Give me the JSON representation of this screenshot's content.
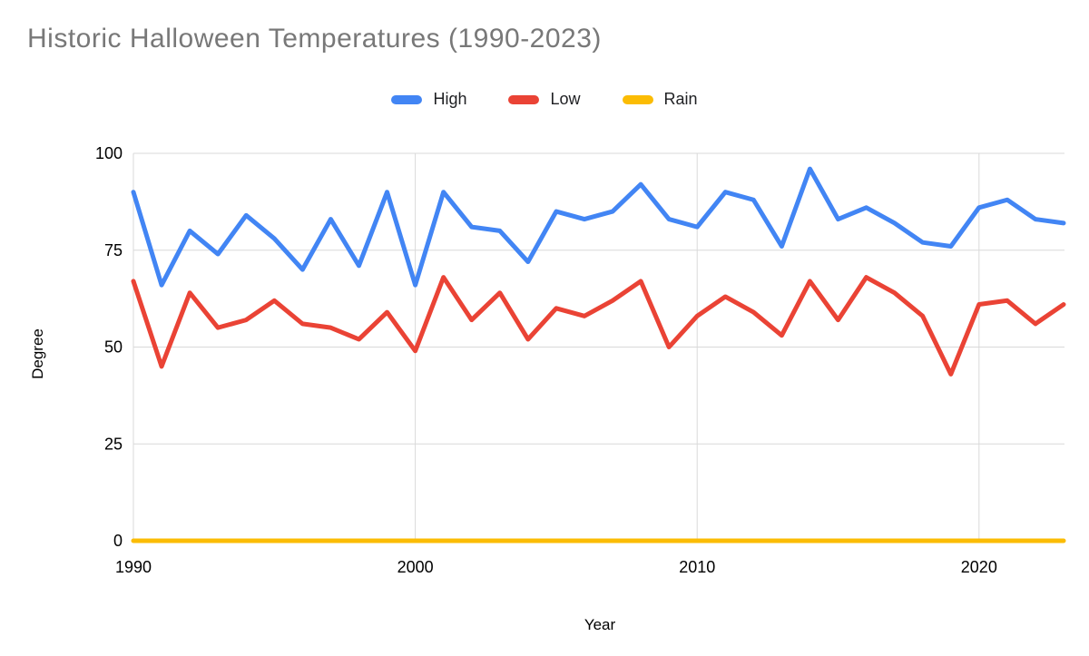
{
  "title": "Historic Halloween Temperatures (1990-2023)",
  "legend": {
    "items": [
      {
        "label": "High",
        "color": "#4285F4"
      },
      {
        "label": "Low",
        "color": "#EA4335"
      },
      {
        "label": "Rain",
        "color": "#FBBC04"
      }
    ]
  },
  "chart_data": {
    "type": "line",
    "title": "Historic Halloween Temperatures (1990-2023)",
    "xlabel": "Year",
    "ylabel": "Degree",
    "x": [
      1990,
      1991,
      1992,
      1993,
      1994,
      1995,
      1996,
      1997,
      1998,
      1999,
      2000,
      2001,
      2002,
      2003,
      2004,
      2005,
      2006,
      2007,
      2008,
      2009,
      2010,
      2011,
      2012,
      2013,
      2014,
      2015,
      2016,
      2017,
      2018,
      2019,
      2020,
      2021,
      2022,
      2023
    ],
    "series": [
      {
        "name": "High",
        "color": "#4285F4",
        "values": [
          90,
          66,
          80,
          74,
          84,
          78,
          70,
          83,
          71,
          90,
          66,
          90,
          81,
          80,
          72,
          85,
          83,
          85,
          92,
          83,
          81,
          90,
          88,
          76,
          96,
          83,
          86,
          82,
          77,
          76,
          86,
          88,
          83,
          82
        ]
      },
      {
        "name": "Low",
        "color": "#EA4335",
        "values": [
          67,
          45,
          64,
          55,
          57,
          62,
          56,
          55,
          52,
          59,
          49,
          68,
          57,
          64,
          52,
          60,
          58,
          62,
          67,
          50,
          58,
          63,
          59,
          53,
          67,
          57,
          68,
          64,
          58,
          43,
          61,
          62,
          56,
          61
        ]
      },
      {
        "name": "Rain",
        "color": "#FBBC04",
        "values": [
          0,
          0,
          0,
          0,
          0,
          0,
          0,
          0,
          0,
          0,
          0,
          0,
          0,
          0,
          0,
          0,
          0,
          0,
          0,
          0,
          0,
          0,
          0,
          0,
          0,
          0,
          0,
          0,
          0,
          0,
          0,
          0,
          0,
          0
        ]
      }
    ],
    "xlim": [
      1990,
      2023
    ],
    "ylim": [
      0,
      100
    ],
    "x_ticks": [
      1990,
      2000,
      2010,
      2020
    ],
    "y_ticks": [
      0,
      25,
      50,
      75,
      100
    ],
    "grid": true,
    "legend_position": "top",
    "gridline_color": "#d9d9d9"
  }
}
